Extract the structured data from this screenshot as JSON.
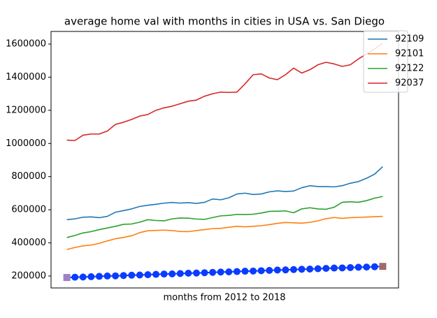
{
  "chart_data": {
    "type": "line",
    "title": "average home val with months in cities in USA vs. San Diego",
    "xlabel": "months from 2012 to 2018",
    "categories": [
      null,
      null,
      null,
      null,
      null,
      null,
      null,
      null,
      null,
      null,
      null,
      null,
      null,
      null,
      null,
      null,
      null,
      null,
      null,
      null,
      null,
      null,
      null,
      null,
      null,
      null,
      null,
      null,
      null,
      null,
      null,
      null,
      null,
      null,
      null,
      null,
      null,
      null,
      null,
      null
    ],
    "ylim": [
      128000,
      1676000
    ],
    "yticks": [
      200000,
      400000,
      600000,
      800000,
      1000000,
      1200000,
      1400000,
      1600000
    ],
    "legend": "upper right",
    "series": [
      {
        "name": "92109",
        "color": "#1f77b4",
        "values": [
          540000,
          545000,
          555000,
          557000,
          552000,
          560000,
          585000,
          595000,
          605000,
          620000,
          627000,
          633000,
          640000,
          644000,
          640000,
          643000,
          638000,
          645000,
          665000,
          660000,
          672000,
          695000,
          700000,
          692000,
          695000,
          708000,
          714000,
          710000,
          713000,
          733000,
          745000,
          740000,
          740000,
          738000,
          745000,
          760000,
          770000,
          790000,
          815000,
          860000
        ]
      },
      {
        "name": "92101",
        "color": "#ff7f0e",
        "values": [
          360000,
          372000,
          382000,
          387000,
          397000,
          412000,
          425000,
          433000,
          443000,
          462000,
          473000,
          475000,
          477000,
          474000,
          469000,
          468000,
          474000,
          480000,
          486000,
          488000,
          494000,
          500000,
          497000,
          500000,
          504000,
          510000,
          518000,
          523000,
          521000,
          519000,
          524000,
          533000,
          546000,
          553000,
          548000,
          552000,
          554000,
          556000,
          558000,
          560000
        ]
      },
      {
        "name": "92122",
        "color": "#2ca02c",
        "values": [
          432000,
          445000,
          460000,
          468000,
          480000,
          490000,
          500000,
          512000,
          514000,
          525000,
          540000,
          535000,
          533000,
          545000,
          550000,
          549000,
          544000,
          542000,
          553000,
          563000,
          566000,
          572000,
          571000,
          573000,
          580000,
          590000,
          591000,
          593000,
          582000,
          605000,
          612000,
          605000,
          603000,
          615000,
          645000,
          648000,
          645000,
          655000,
          670000,
          680000
        ]
      },
      {
        "name": "92037",
        "color": "#d62728",
        "values": [
          1020000,
          1018000,
          1050000,
          1057000,
          1057000,
          1075000,
          1115000,
          1128000,
          1145000,
          1165000,
          1175000,
          1200000,
          1215000,
          1225000,
          1240000,
          1255000,
          1262000,
          1285000,
          1300000,
          1310000,
          1308000,
          1310000,
          1360000,
          1415000,
          1420000,
          1395000,
          1385000,
          1415000,
          1455000,
          1425000,
          1445000,
          1475000,
          1490000,
          1480000,
          1465000,
          1475000,
          1510000,
          1540000,
          1570000,
          1605000
        ]
      },
      {
        "color": "#0a3cff",
        "start_color": "#a07fc8",
        "end_color": "#a06a6a",
        "marker": "dots",
        "values": [
          191000,
          193000,
          194000,
          196000,
          198000,
          200000,
          201000,
          203000,
          205000,
          206000,
          208000,
          210000,
          212000,
          213000,
          215000,
          217000,
          218000,
          220000,
          222000,
          224000,
          225000,
          227000,
          229000,
          230000,
          232000,
          234000,
          236000,
          237000,
          239000,
          241000,
          242000,
          244000,
          246000,
          248000,
          249000,
          251000,
          253000,
          254000,
          256000,
          258000
        ]
      }
    ]
  }
}
